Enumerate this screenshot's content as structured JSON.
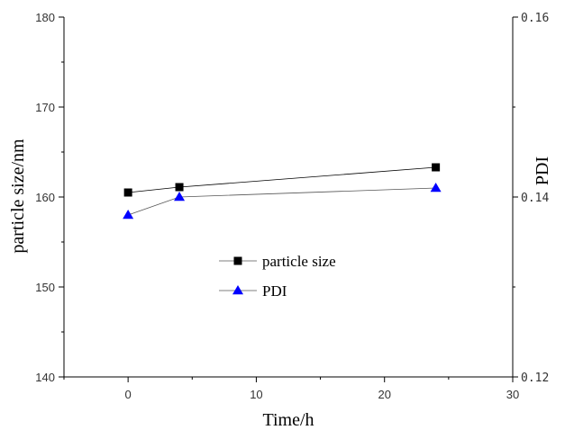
{
  "chart_data": {
    "type": "line",
    "xlabel": "Time/h",
    "ylabel_left": "particle size/nm",
    "ylabel_right": "PDI",
    "xlim": [
      -5,
      30
    ],
    "ylim_left": [
      140,
      180
    ],
    "ylim_right": [
      0.12,
      0.16
    ],
    "x_ticks": [
      0,
      10,
      20,
      30
    ],
    "y_ticks_left": [
      140,
      150,
      160,
      170,
      180
    ],
    "y_ticks_right": [
      "0.12",
      "0.14",
      "0.16"
    ],
    "legend_position": "center-left",
    "grid": false,
    "series": [
      {
        "name": "particle size",
        "axis": "left",
        "marker": "square",
        "color": "#000000",
        "x": [
          0,
          4,
          24
        ],
        "y": [
          160.5,
          161.1,
          163.3
        ]
      },
      {
        "name": "PDI",
        "axis": "right",
        "marker": "triangle",
        "color": "#0000ff",
        "x": [
          0,
          4,
          24
        ],
        "y": [
          0.138,
          0.14,
          0.141
        ]
      }
    ]
  }
}
